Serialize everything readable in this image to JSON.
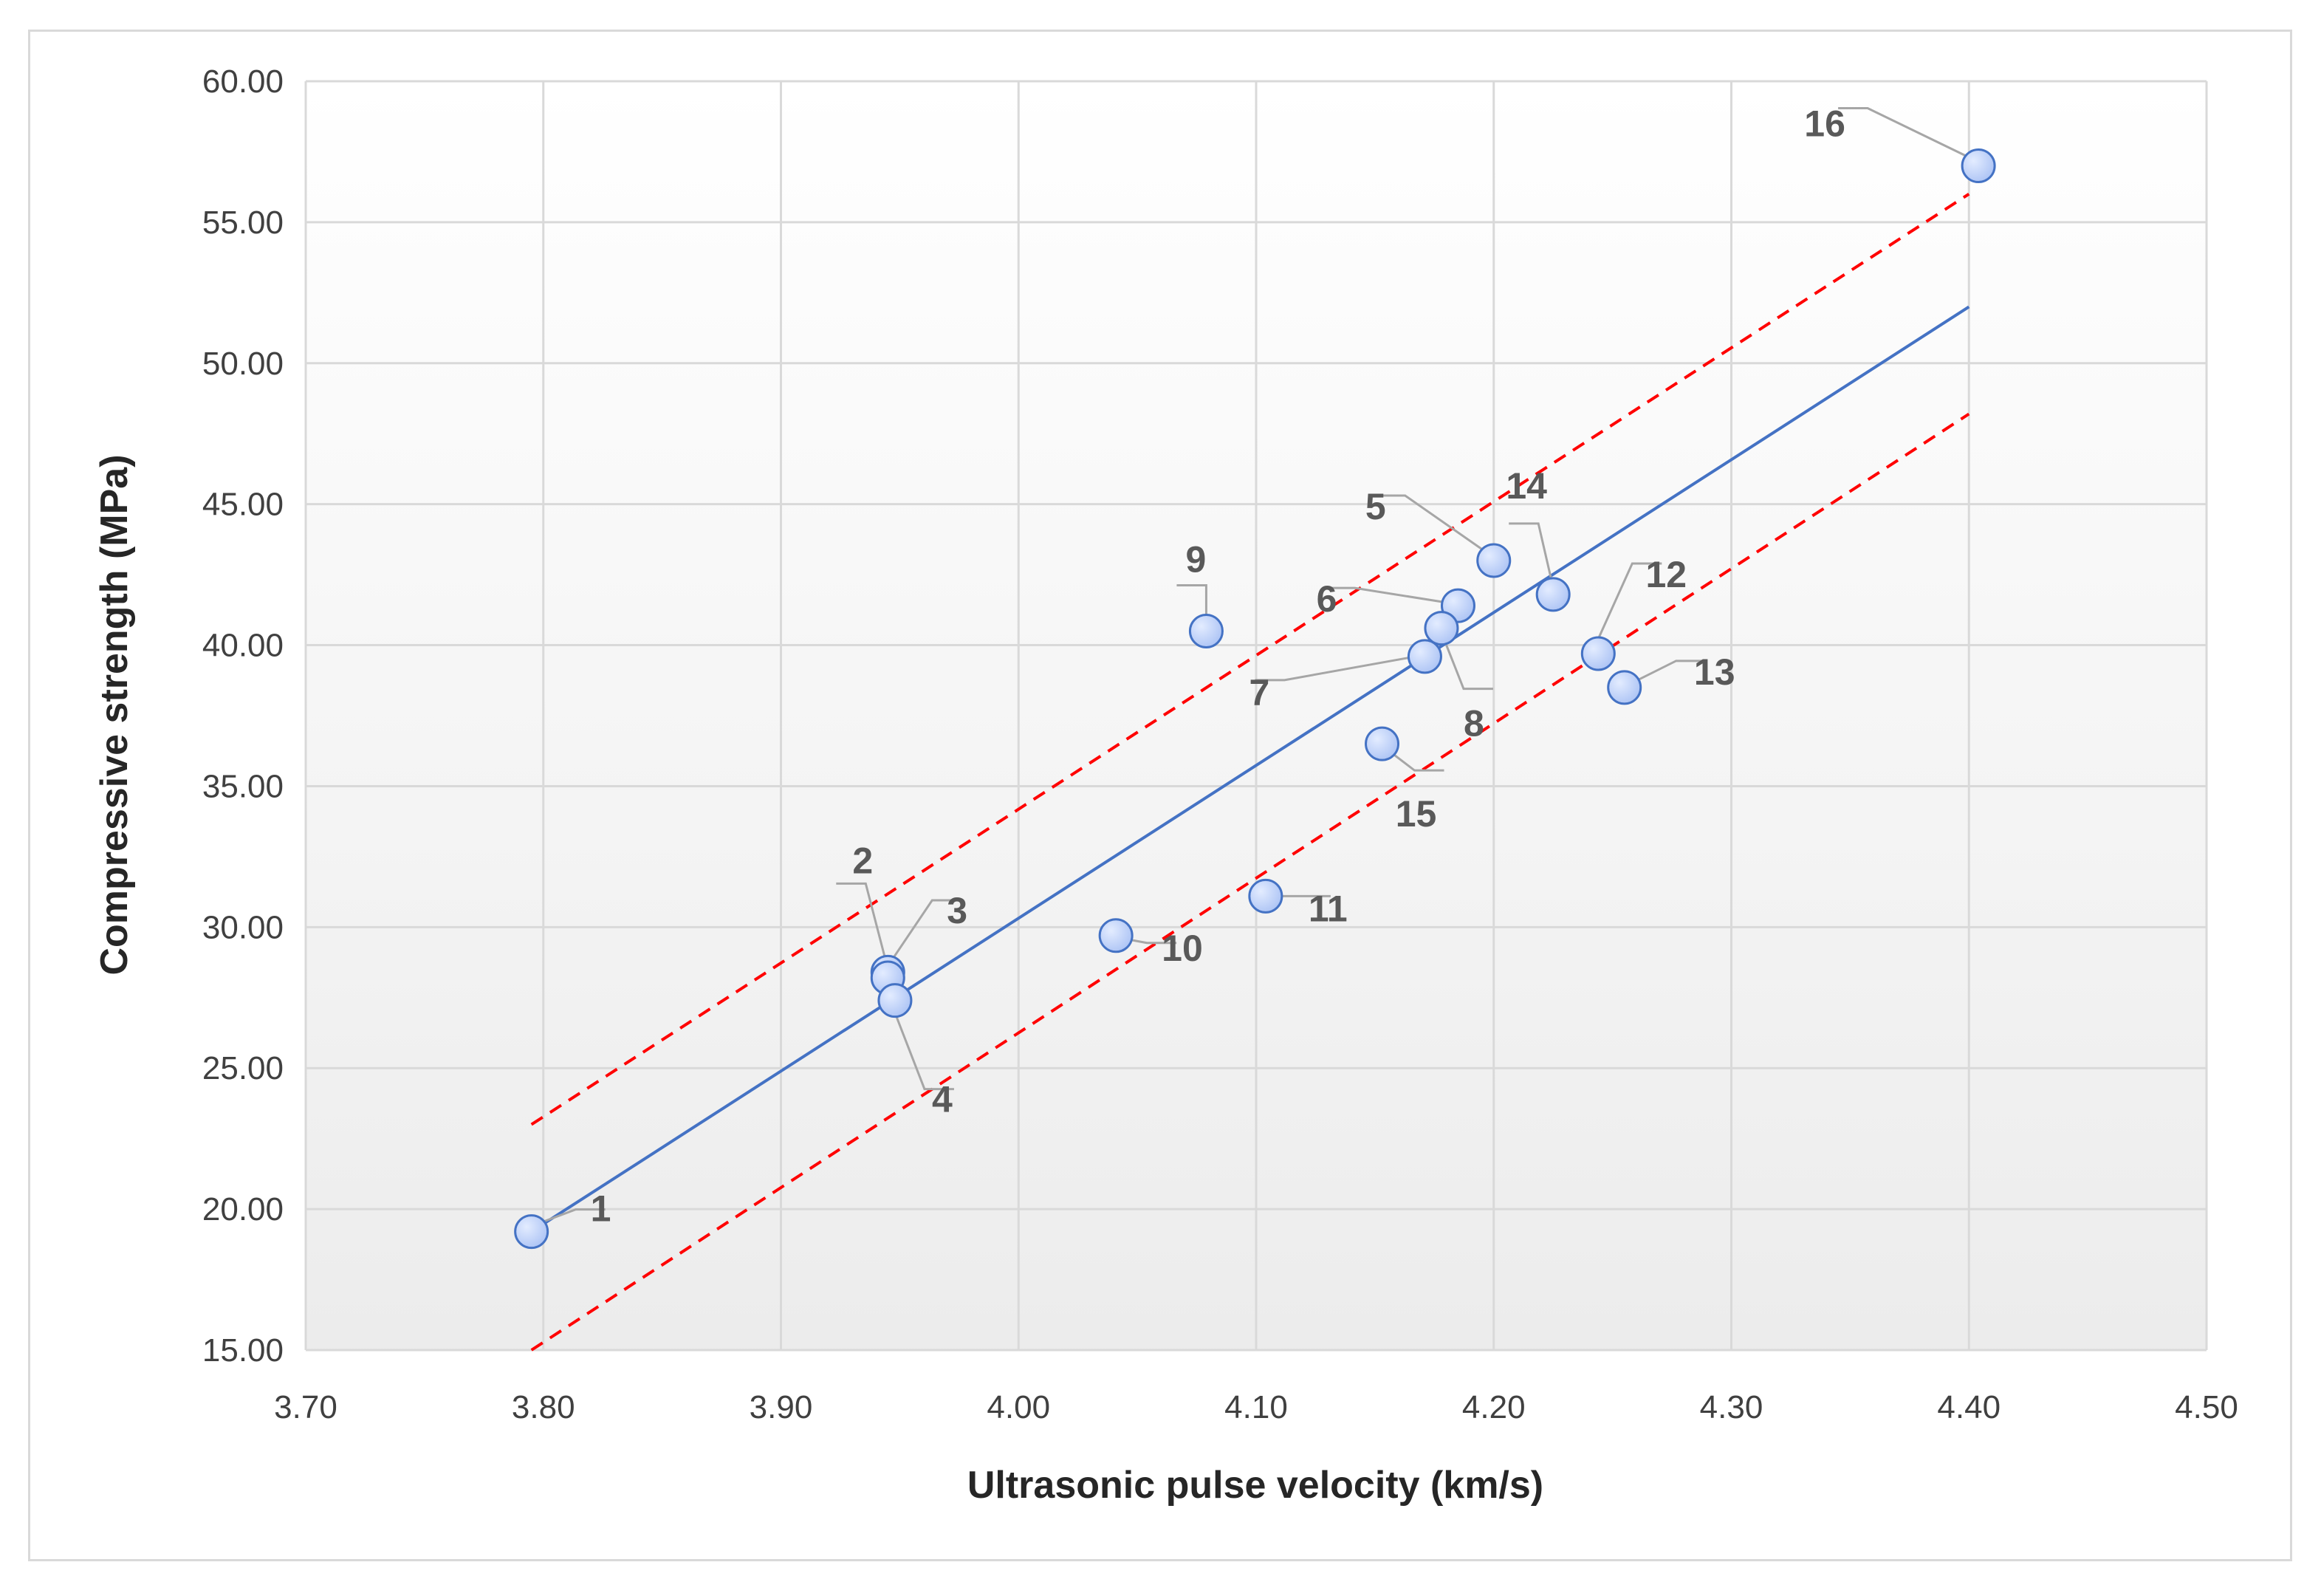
{
  "chart_data": {
    "type": "scatter",
    "title": "",
    "xlabel": "Ultrasonic pulse velocity (km/s)",
    "ylabel": "Compressive strength (MPa)",
    "xlim": [
      3.7,
      4.5
    ],
    "ylim": [
      15.0,
      60.0
    ],
    "x_ticks": [
      "3.70",
      "3.80",
      "3.90",
      "4.00",
      "4.10",
      "4.20",
      "4.30",
      "4.40",
      "4.50"
    ],
    "y_ticks": [
      "15.00",
      "20.00",
      "25.00",
      "30.00",
      "35.00",
      "40.00",
      "45.00",
      "50.00",
      "55.00",
      "60.00"
    ],
    "grid": true,
    "points": [
      {
        "label": "1",
        "x": 3.795,
        "y": 19.2
      },
      {
        "label": "2",
        "x": 3.945,
        "y": 28.4
      },
      {
        "label": "3",
        "x": 3.945,
        "y": 28.2
      },
      {
        "label": "4",
        "x": 3.948,
        "y": 27.4
      },
      {
        "label": "5",
        "x": 4.2,
        "y": 43.0
      },
      {
        "label": "6",
        "x": 4.185,
        "y": 41.4
      },
      {
        "label": "7",
        "x": 4.171,
        "y": 39.6
      },
      {
        "label": "8",
        "x": 4.178,
        "y": 40.6
      },
      {
        "label": "9",
        "x": 4.079,
        "y": 40.5
      },
      {
        "label": "10",
        "x": 4.041,
        "y": 29.7
      },
      {
        "label": "11",
        "x": 4.104,
        "y": 31.1
      },
      {
        "label": "12",
        "x": 4.244,
        "y": 39.7
      },
      {
        "label": "13",
        "x": 4.255,
        "y": 38.5
      },
      {
        "label": "14",
        "x": 4.225,
        "y": 41.8
      },
      {
        "label": "15",
        "x": 4.153,
        "y": 36.5
      },
      {
        "label": "16",
        "x": 4.404,
        "y": 57.0
      }
    ],
    "lines": [
      {
        "name": "regression",
        "style": "solid",
        "color": "#4472c4",
        "x": [
          3.795,
          4.4
        ],
        "y": [
          19.2,
          52.0
        ]
      },
      {
        "name": "upper bound",
        "style": "dashed",
        "color": "#ff0000",
        "x": [
          3.795,
          4.4
        ],
        "y": [
          23.0,
          56.0
        ]
      },
      {
        "name": "lower bound",
        "style": "dashed",
        "color": "#ff0000",
        "x": [
          3.795,
          4.4
        ],
        "y": [
          15.0,
          48.2
        ]
      }
    ]
  },
  "colors": {
    "marker_fill": "#a9c1f4",
    "marker_stroke": "#4472c4",
    "grid": "#d9d9d9",
    "leader": "#a6a6a6"
  }
}
